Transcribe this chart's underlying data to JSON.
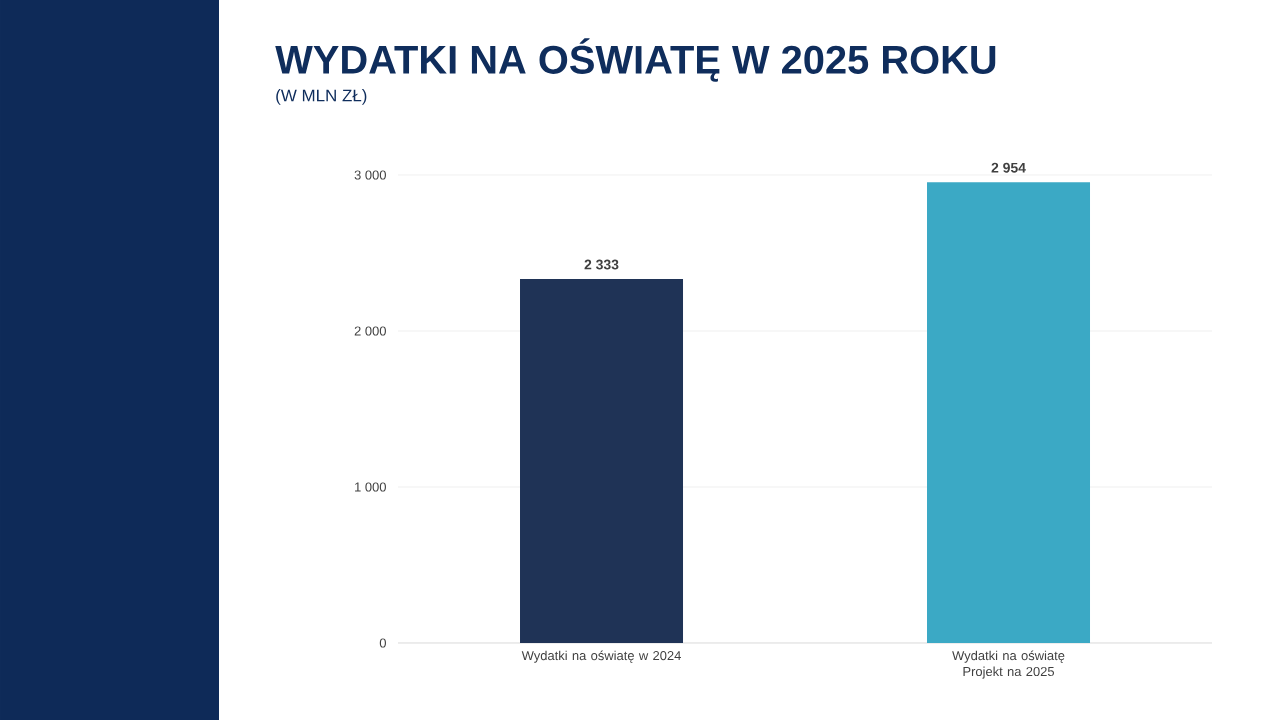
{
  "chart_data": {
    "type": "bar",
    "title": "WYDATKI NA OŚWIATĘ W 2025 ROKU",
    "subtitle": "(W MLN ZŁ)",
    "categories": [
      "Wydatki na oświatę w 2024",
      "Wydatki na oświatę Projekt na 2025"
    ],
    "values": [
      2333,
      2954
    ],
    "colors": [
      "#1f3356",
      "#3ba9c5"
    ],
    "value_labels": [
      "2 333",
      "2 954"
    ],
    "ylim": [
      0,
      3000
    ],
    "yticks": [
      0,
      {
        "value": 1000,
        "label": "1 000"
      },
      {
        "value": 2000,
        "label": "2 000"
      },
      {
        "value": 3000,
        "label": "3 000"
      }
    ],
    "grid": "y"
  }
}
